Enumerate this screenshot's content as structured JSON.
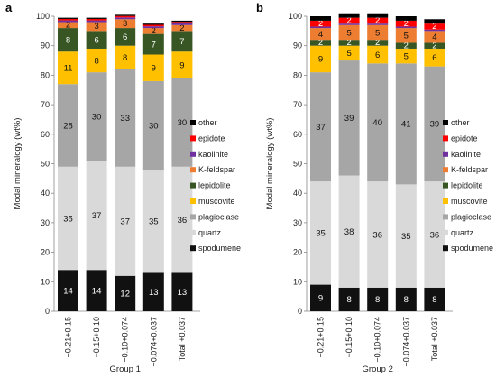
{
  "chart_data": [
    {
      "type": "bar",
      "stacked": true,
      "panel": "a",
      "group_label": "Group 1",
      "ylabel": "Modal mineralogy (wt%)",
      "ylim": [
        0,
        100
      ],
      "ytick_step": 10,
      "categories": [
        "−0.21+0.15",
        "−0.15+0.10",
        "−0.10+0.074",
        "−0.074+0.037",
        "Total +0.037"
      ],
      "series": [
        {
          "name": "spodumene",
          "color": "#111111",
          "values": [
            14,
            14,
            12,
            13,
            13
          ],
          "labels": [
            "14",
            "14",
            "12",
            "13",
            "13"
          ]
        },
        {
          "name": "quartz",
          "color": "#d9d9d9",
          "values": [
            35,
            37,
            37,
            35,
            36
          ],
          "labels": [
            "35",
            "37",
            "37",
            "35",
            "36"
          ]
        },
        {
          "name": "plagioclase",
          "color": "#a6a6a6",
          "values": [
            28,
            30,
            33,
            30,
            30
          ],
          "labels": [
            "28",
            "30",
            "33",
            "30",
            "30"
          ]
        },
        {
          "name": "muscovite",
          "color": "#ffc000",
          "values": [
            11,
            8,
            8,
            9,
            9
          ],
          "labels": [
            "11",
            "8",
            "8",
            "9",
            "9"
          ]
        },
        {
          "name": "lepidolite",
          "color": "#375623",
          "values": [
            8,
            6,
            6,
            7,
            7
          ],
          "labels": [
            "8",
            "6",
            "6",
            "7",
            "7"
          ]
        },
        {
          "name": "K-feldspar",
          "color": "#ed7d31",
          "values": [
            2,
            3,
            3,
            2,
            2
          ],
          "labels": [
            "2",
            "3",
            "3",
            "2",
            "2"
          ]
        },
        {
          "name": "kaolinite",
          "color": "#7030a0",
          "values": [
            0.6,
            0.6,
            0.6,
            0.6,
            0.6
          ],
          "labels": [
            "",
            "",
            "",
            "",
            ""
          ]
        },
        {
          "name": "epidote",
          "color": "#ff0000",
          "values": [
            0.5,
            0.5,
            0.5,
            0.5,
            0.5
          ],
          "labels": [
            "",
            "",
            "",
            "",
            ""
          ]
        },
        {
          "name": "other",
          "color": "#000000",
          "values": [
            0.4,
            0.4,
            0.4,
            0.4,
            0.4
          ],
          "labels": [
            "",
            "",
            "",
            "",
            ""
          ]
        }
      ]
    },
    {
      "type": "bar",
      "stacked": true,
      "panel": "b",
      "group_label": "Group 2",
      "ylabel": "Modal mineralogy (wt%)",
      "ylim": [
        0,
        100
      ],
      "ytick_step": 10,
      "categories": [
        "−0.21+0.15",
        "−0.15+0.10",
        "−0.10+0.074",
        "−0.074+0.037",
        "Total +0.037"
      ],
      "series": [
        {
          "name": "spodumene",
          "color": "#111111",
          "values": [
            9,
            8,
            8,
            8,
            8
          ],
          "labels": [
            "9",
            "8",
            "8",
            "8",
            "8"
          ]
        },
        {
          "name": "quartz",
          "color": "#d9d9d9",
          "values": [
            35,
            38,
            36,
            35,
            36
          ],
          "labels": [
            "35",
            "38",
            "36",
            "35",
            "36"
          ]
        },
        {
          "name": "plagioclase",
          "color": "#a6a6a6",
          "values": [
            37,
            39,
            40,
            41,
            39
          ],
          "labels": [
            "37",
            "39",
            "40",
            "41",
            "39"
          ]
        },
        {
          "name": "muscovite",
          "color": "#ffc000",
          "values": [
            9,
            5,
            6,
            5,
            6
          ],
          "labels": [
            "9",
            "5",
            "6",
            "5",
            "6"
          ]
        },
        {
          "name": "lepidolite",
          "color": "#375623",
          "values": [
            2,
            2,
            2,
            2,
            2
          ],
          "labels": [
            "2",
            "2",
            "2",
            "2",
            "2"
          ]
        },
        {
          "name": "K-feldspar",
          "color": "#ed7d31",
          "values": [
            4,
            5,
            5,
            5,
            4
          ],
          "labels": [
            "4",
            "5",
            "5",
            "5",
            "4"
          ]
        },
        {
          "name": "kaolinite",
          "color": "#7030a0",
          "values": [
            0.5,
            0.5,
            0.5,
            0.5,
            0.5
          ],
          "labels": [
            "",
            "",
            "",
            "",
            ""
          ]
        },
        {
          "name": "epidote",
          "color": "#ff0000",
          "values": [
            2,
            2,
            2,
            2,
            2
          ],
          "labels": [
            "2",
            "2",
            "2",
            "2",
            "2"
          ]
        },
        {
          "name": "other",
          "color": "#000000",
          "values": [
            1.5,
            1.5,
            1.5,
            1.5,
            1.5
          ],
          "labels": [
            "",
            "",
            "",
            "",
            ""
          ]
        }
      ]
    }
  ]
}
